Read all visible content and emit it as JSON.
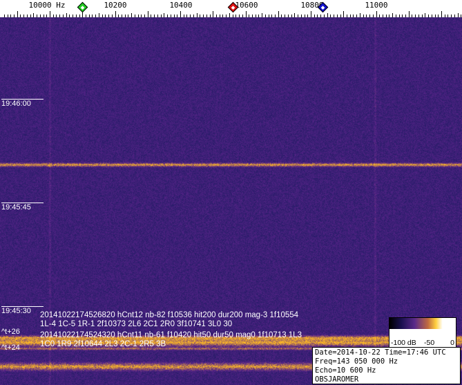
{
  "ruler": {
    "unit_label": "10000 Hz",
    "labels": [
      "10200",
      "10400",
      "10600",
      "10800",
      "11000"
    ],
    "markers": [
      {
        "name": "green",
        "color": "#22cc22",
        "freq_hz": 10100
      },
      {
        "name": "red",
        "color": "#dd1111",
        "freq_hz": 10560
      },
      {
        "name": "blue",
        "color": "#1111cc",
        "freq_hz": 10835
      }
    ]
  },
  "time_labels": [
    "19:46:00",
    "19:45:45",
    "19:45:30"
  ],
  "detections": [
    "20141022174526820 hCnt12 nb-82 f10536 hit200 dur200 mag-3 1f10554 1L-4 1C-5 1R-1 2f10373 2L6 2C1 2R0 3f10741 3L0 30",
    "20141022174524320 hCnt11 nb-61 f10420 hit50 dur50 mag0 1f10713 1L3 1C0 1R9 2f10644 2L3 2C-1 2R5 3B"
  ],
  "tags": [
    "^t+26",
    "^t+24"
  ],
  "colorbar": {
    "labels": [
      "-100 dB",
      "-50",
      "0"
    ]
  },
  "info": {
    "line1": "Date=2014-10-22 Time=17:46 UTC",
    "line2": "Freq=143 050 000 Hz",
    "line3": "Echo=10 600 Hz",
    "line4": "OBSJAROMER"
  },
  "colors": {
    "background": "#2b2070",
    "echo": "#ffb030"
  }
}
